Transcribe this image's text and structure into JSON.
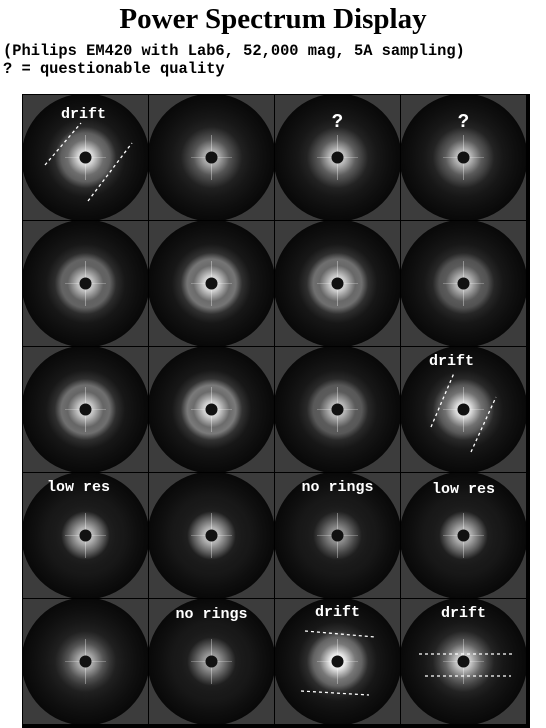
{
  "title": "Power Spectrum Display",
  "subtitle": "(Philips EM420 with Lab6, 52,000 mag, 5A sampling)",
  "legend": "? = questionable quality",
  "tiles": [
    {
      "label": "drift",
      "ring": 0.55,
      "halo": 0.85,
      "marker": "drift-diag"
    },
    {
      "label": "",
      "ring": 0.25,
      "halo": 0.45
    },
    {
      "label": "?",
      "ring": 0.3,
      "halo": 0.6
    },
    {
      "label": "?",
      "ring": 0.3,
      "halo": 0.55
    },
    {
      "label": "",
      "ring": 0.6,
      "halo": 0.65
    },
    {
      "label": "",
      "ring": 0.75,
      "halo": 0.8
    },
    {
      "label": "",
      "ring": 0.7,
      "halo": 0.75
    },
    {
      "label": "",
      "ring": 0.45,
      "halo": 0.55
    },
    {
      "label": "",
      "ring": 0.7,
      "halo": 0.7
    },
    {
      "label": "",
      "ring": 0.8,
      "halo": 0.8
    },
    {
      "label": "",
      "ring": 0.5,
      "halo": 0.55
    },
    {
      "label": "drift",
      "ring": 0.5,
      "halo": 0.9,
      "marker": "drift-steep"
    },
    {
      "label": "low res",
      "ring": 0.0,
      "halo": 0.55
    },
    {
      "label": "",
      "ring": 0.0,
      "halo": 0.55
    },
    {
      "label": "no rings",
      "ring": 0.0,
      "halo": 0.2
    },
    {
      "label": "low res",
      "ring": 0.0,
      "halo": 0.5
    },
    {
      "label": "",
      "ring": 0.2,
      "halo": 0.45
    },
    {
      "label": "no rings",
      "ring": 0.0,
      "halo": 0.3
    },
    {
      "label": "drift",
      "ring": 0.6,
      "halo": 1.0,
      "marker": "drift-flat"
    },
    {
      "label": "drift",
      "ring": 0.3,
      "halo": 0.7,
      "marker": "drift-horiz"
    }
  ]
}
